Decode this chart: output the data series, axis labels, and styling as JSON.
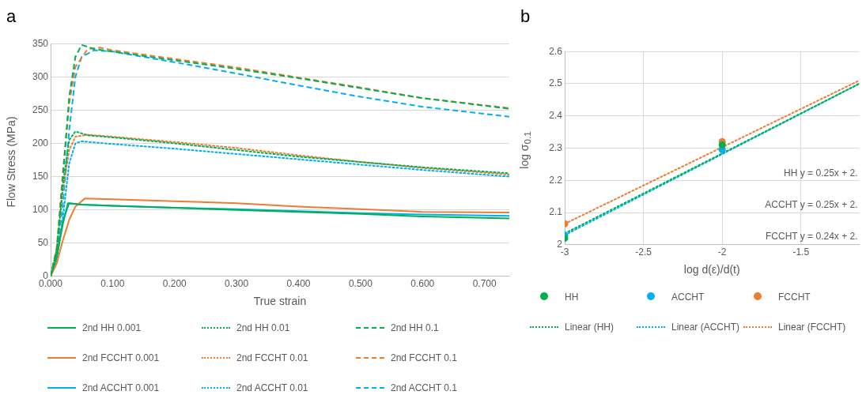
{
  "chart_data": [
    {
      "type": "line",
      "title": "a",
      "xlabel": "True strain",
      "ylabel": "Flow Stress (MPa)",
      "xlim": [
        0,
        0.74
      ],
      "ylim": [
        0,
        350
      ],
      "xticks": [
        {
          "value": 0,
          "label": "0.000"
        },
        {
          "value": 0.1,
          "label": "0.100"
        },
        {
          "value": 0.2,
          "label": "0.200"
        },
        {
          "value": 0.3,
          "label": "0.300"
        },
        {
          "value": 0.4,
          "label": "0.400"
        },
        {
          "value": 0.5,
          "label": "0.500"
        },
        {
          "value": 0.6,
          "label": "0.600"
        },
        {
          "value": 0.7,
          "label": "0.700"
        }
      ],
      "yticks": [
        0,
        50,
        100,
        150,
        200,
        250,
        300,
        350
      ],
      "grid": "y",
      "legend": "bottom",
      "marker": "none",
      "series": [
        {
          "name": "2nd HH 0.001",
          "color": "#00b050",
          "line_style": "solid",
          "x": [
            0,
            0.01,
            0.02,
            0.028,
            0.05,
            0.1,
            0.2,
            0.3,
            0.4,
            0.5,
            0.6,
            0.74
          ],
          "values": [
            0,
            30,
            80,
            110,
            108,
            106,
            103,
            100,
            97,
            94,
            90,
            87
          ]
        },
        {
          "name": "2nd HH 0.01",
          "color": "#00b050",
          "line_style": "dotted",
          "x": [
            0,
            0.01,
            0.02,
            0.03,
            0.04,
            0.06,
            0.1,
            0.2,
            0.3,
            0.4,
            0.5,
            0.6,
            0.74
          ],
          "values": [
            0,
            40,
            140,
            205,
            218,
            212,
            209,
            200,
            190,
            180,
            172,
            164,
            155
          ]
        },
        {
          "name": "2nd HH 0.1",
          "color": "#00b050",
          "line_style": "dashed",
          "x": [
            0,
            0.01,
            0.02,
            0.03,
            0.04,
            0.05,
            0.07,
            0.1,
            0.2,
            0.3,
            0.4,
            0.5,
            0.6,
            0.74
          ],
          "values": [
            0,
            40,
            150,
            270,
            330,
            348,
            342,
            338,
            325,
            312,
            298,
            283,
            268,
            252
          ]
        },
        {
          "name": "2nd FCCHT 0.001",
          "color": "#ed7d31",
          "line_style": "solid",
          "x": [
            0,
            0.01,
            0.02,
            0.03,
            0.04,
            0.055,
            0.1,
            0.2,
            0.3,
            0.4,
            0.5,
            0.6,
            0.74
          ],
          "values": [
            0,
            20,
            55,
            85,
            105,
            117,
            116,
            113,
            110,
            105,
            101,
            97,
            96
          ]
        },
        {
          "name": "2nd FCCHT 0.01",
          "color": "#ed7d31",
          "line_style": "dotted",
          "x": [
            0,
            0.01,
            0.02,
            0.03,
            0.04,
            0.06,
            0.1,
            0.2,
            0.3,
            0.4,
            0.5,
            0.6,
            0.74
          ],
          "values": [
            0,
            40,
            130,
            190,
            210,
            213,
            210,
            202,
            193,
            182,
            172,
            163,
            153
          ]
        },
        {
          "name": "2nd FCCHT 0.1",
          "color": "#ed7d31",
          "line_style": "dashed",
          "x": [
            0,
            0.01,
            0.02,
            0.03,
            0.04,
            0.06,
            0.08,
            0.1,
            0.2,
            0.3,
            0.4,
            0.5,
            0.6,
            0.74
          ],
          "values": [
            0,
            45,
            160,
            260,
            315,
            342,
            344,
            340,
            327,
            314,
            299,
            284,
            268,
            253
          ]
        },
        {
          "name": "2nd ACCHT 0.001",
          "color": "#00b0f0",
          "line_style": "solid",
          "x": [
            0,
            0.01,
            0.02,
            0.03,
            0.05,
            0.1,
            0.2,
            0.3,
            0.4,
            0.5,
            0.6,
            0.74
          ],
          "values": [
            0,
            30,
            85,
            110,
            108,
            106,
            103,
            101,
            98,
            95,
            93,
            91
          ]
        },
        {
          "name": "2nd ACCHT 0.01",
          "color": "#00b0f0",
          "line_style": "dotted",
          "x": [
            0,
            0.01,
            0.02,
            0.03,
            0.04,
            0.05,
            0.1,
            0.2,
            0.3,
            0.4,
            0.5,
            0.6,
            0.74
          ],
          "values": [
            0,
            25,
            90,
            170,
            200,
            203,
            199,
            192,
            184,
            176,
            168,
            160,
            150
          ]
        },
        {
          "name": "2nd ACCHT 0.1",
          "color": "#00b0f0",
          "line_style": "dashed",
          "x": [
            0,
            0.01,
            0.02,
            0.03,
            0.04,
            0.05,
            0.07,
            0.1,
            0.2,
            0.3,
            0.4,
            0.5,
            0.6,
            0.74
          ],
          "values": [
            0,
            30,
            110,
            220,
            300,
            330,
            340,
            338,
            322,
            305,
            287,
            270,
            255,
            240
          ]
        }
      ]
    },
    {
      "type": "scatter",
      "title": "b",
      "xlabel": "log d(ε)/d(t)",
      "ylabel": "log σ$_{0.1}$",
      "xlim": [
        -3,
        -1.13
      ],
      "ylim": [
        2,
        2.6
      ],
      "xticks": [
        -3,
        -2.5,
        -2,
        -1.5
      ],
      "yticks": [
        2,
        2.1,
        2.2,
        2.3,
        2.4,
        2.5,
        2.6
      ],
      "grid": true,
      "legend": "bottom",
      "annotations": [
        "HH y = 0.25x + 2.",
        "ACCHT y = 0.25x + 2.",
        "FCCHT y = 0.24x + 2."
      ],
      "series": [
        {
          "name": "HH",
          "color": "#00b050",
          "marker": "circle",
          "x": [
            -3,
            -2
          ],
          "values": [
            2.02,
            2.31
          ]
        },
        {
          "name": "ACCHT",
          "color": "#00b0f0",
          "marker": "circle",
          "x": [
            -3,
            -2
          ],
          "values": [
            2.03,
            2.295
          ]
        },
        {
          "name": "FCCHT",
          "color": "#ed7d31",
          "marker": "circle",
          "x": [
            -3,
            -2
          ],
          "values": [
            2.065,
            2.32
          ]
        },
        {
          "name": "Linear (HH)",
          "type": "line",
          "color": "#00b050",
          "marker": "none",
          "line_style": "dotted",
          "x": [
            -3,
            -1.13
          ],
          "values": [
            2.035,
            2.5
          ]
        },
        {
          "name": "Linear (ACCHT)",
          "type": "line",
          "color": "#00b0f0",
          "marker": "none",
          "line_style": "dotted",
          "x": [
            -3,
            -1.13
          ],
          "values": [
            2.03,
            2.5
          ]
        },
        {
          "name": "Linear (FCCHT)",
          "type": "line",
          "color": "#ed7d31",
          "marker": "none",
          "line_style": "dotted",
          "x": [
            -3,
            -1.13
          ],
          "values": [
            2.065,
            2.51
          ]
        }
      ]
    }
  ]
}
